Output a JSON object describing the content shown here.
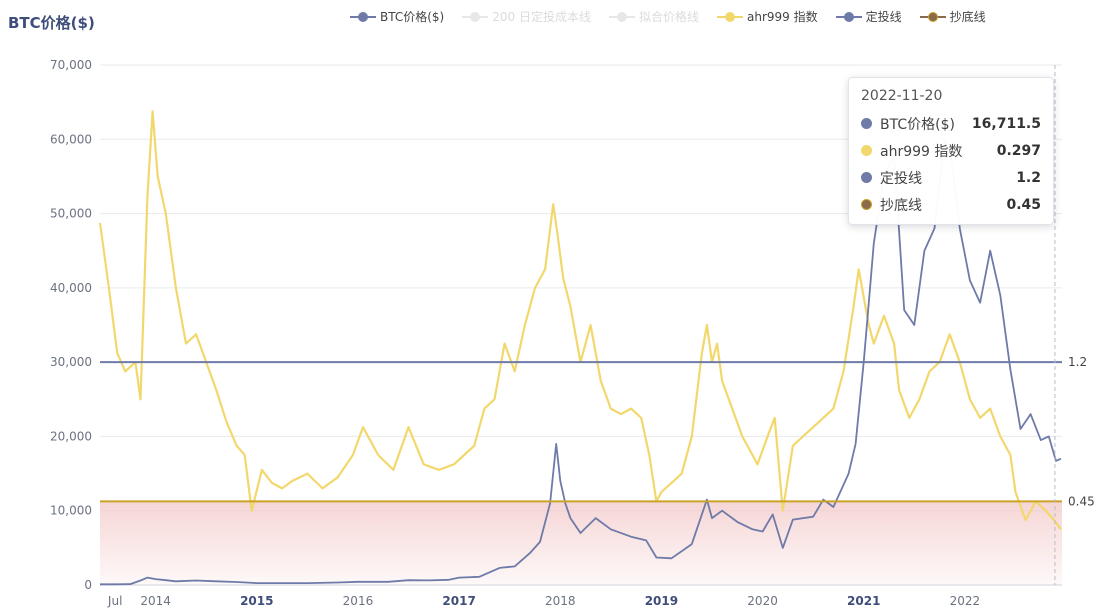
{
  "chart_data": {
    "type": "line",
    "y_axis_title": "BTC价格($)",
    "ylim": [
      0,
      70000
    ],
    "y_ticks": [
      "0",
      "10,000",
      "20,000",
      "30,000",
      "40,000",
      "50,000",
      "60,000",
      "70,000"
    ],
    "x_tick_labels": [
      {
        "label": "Jul",
        "bold": false
      },
      {
        "label": "2014",
        "bold": false
      },
      {
        "label": "2015",
        "bold": true
      },
      {
        "label": "2016",
        "bold": false
      },
      {
        "label": "2017",
        "bold": true
      },
      {
        "label": "2018",
        "bold": false
      },
      {
        "label": "2019",
        "bold": true
      },
      {
        "label": "2020",
        "bold": false
      },
      {
        "label": "2021",
        "bold": true
      },
      {
        "label": "2022",
        "bold": false
      }
    ],
    "grid": true,
    "legend_position": "top-center",
    "legend": [
      {
        "name": "BTC价格($)",
        "color": "#6e7aa8",
        "active": true
      },
      {
        "name": "200 日定投成本线",
        "color": "#c8c8c8",
        "active": false
      },
      {
        "name": "拟合价格线",
        "color": "#c8c8c8",
        "active": false
      },
      {
        "name": "ahr999 指数",
        "color": "#f2d86c",
        "active": true
      },
      {
        "name": "定投线",
        "color": "#6e7aa8",
        "active": true
      },
      {
        "name": "抄底线",
        "color": "#8a6a4a",
        "active": true
      }
    ],
    "colors": {
      "btc": "#6e7aa8",
      "ahr": "#f2d86c",
      "line_dingtou": "#6e7aa8",
      "line_chaodi": "#c9a227",
      "zone": "#f3c8c8"
    },
    "series": [
      {
        "name": "BTC价格($)",
        "axis": "left",
        "x": [
          2013.45,
          2013.6,
          2013.75,
          2013.85,
          2013.92,
          2014.0,
          2014.1,
          2014.2,
          2014.4,
          2014.6,
          2014.8,
          2015.0,
          2015.2,
          2015.5,
          2015.8,
          2016.0,
          2016.3,
          2016.5,
          2016.7,
          2016.9,
          2017.0,
          2017.2,
          2017.4,
          2017.55,
          2017.7,
          2017.8,
          2017.9,
          2017.96,
          2018.0,
          2018.05,
          2018.1,
          2018.2,
          2018.35,
          2018.5,
          2018.7,
          2018.85,
          2018.95,
          2019.1,
          2019.3,
          2019.45,
          2019.5,
          2019.6,
          2019.75,
          2019.9,
          2020.0,
          2020.1,
          2020.2,
          2020.3,
          2020.5,
          2020.6,
          2020.7,
          2020.85,
          2020.92,
          2021.0,
          2021.05,
          2021.1,
          2021.2,
          2021.3,
          2021.4,
          2021.5,
          2021.6,
          2021.7,
          2021.8,
          2021.87,
          2021.95,
          2022.05,
          2022.15,
          2022.25,
          2022.35,
          2022.45,
          2022.55,
          2022.65,
          2022.75,
          2022.83,
          2022.9,
          2022.95
        ],
        "y": [
          100,
          100,
          120,
          600,
          1000,
          800,
          650,
          500,
          600,
          500,
          400,
          250,
          250,
          250,
          330,
          430,
          430,
          650,
          620,
          700,
          1000,
          1100,
          2300,
          2500,
          4300,
          5800,
          11000,
          19000,
          14000,
          11000,
          9000,
          7000,
          9000,
          7500,
          6500,
          6000,
          3700,
          3600,
          5500,
          11500,
          9000,
          10000,
          8500,
          7500,
          7200,
          9500,
          5000,
          8800,
          9200,
          11500,
          10500,
          15000,
          19000,
          30000,
          38000,
          46000,
          55000,
          58000,
          37000,
          35000,
          45000,
          48000,
          60000,
          57000,
          48000,
          41000,
          38000,
          45000,
          39000,
          29000,
          21000,
          23000,
          19500,
          20000,
          16700,
          17000
        ]
      },
      {
        "name": "ahr999 指数",
        "axis": "right",
        "x": [
          2013.45,
          2013.5,
          2013.55,
          2013.62,
          2013.7,
          2013.8,
          2013.85,
          2013.92,
          2013.97,
          2014.02,
          2014.1,
          2014.2,
          2014.3,
          2014.4,
          2014.5,
          2014.6,
          2014.7,
          2014.8,
          2014.88,
          2014.95,
          2015.05,
          2015.15,
          2015.25,
          2015.35,
          2015.5,
          2015.65,
          2015.8,
          2015.95,
          2016.05,
          2016.2,
          2016.35,
          2016.5,
          2016.65,
          2016.8,
          2016.95,
          2017.05,
          2017.15,
          2017.25,
          2017.35,
          2017.45,
          2017.55,
          2017.65,
          2017.75,
          2017.85,
          2017.93,
          2017.97,
          2018.03,
          2018.1,
          2018.2,
          2018.3,
          2018.4,
          2018.5,
          2018.6,
          2018.7,
          2018.8,
          2018.88,
          2018.95,
          2019.0,
          2019.1,
          2019.2,
          2019.3,
          2019.4,
          2019.45,
          2019.5,
          2019.55,
          2019.6,
          2019.7,
          2019.8,
          2019.9,
          2019.95,
          2020.05,
          2020.12,
          2020.2,
          2020.3,
          2020.4,
          2020.5,
          2020.6,
          2020.7,
          2020.8,
          2020.9,
          2020.95,
          2021.0,
          2021.05,
          2021.1,
          2021.2,
          2021.3,
          2021.35,
          2021.45,
          2021.55,
          2021.65,
          2021.75,
          2021.85,
          2021.95,
          2022.05,
          2022.15,
          2022.25,
          2022.35,
          2022.45,
          2022.5,
          2022.6,
          2022.7,
          2022.8,
          2022.88,
          2022.95
        ],
        "y": [
          1.95,
          1.75,
          1.55,
          1.25,
          1.15,
          1.2,
          1.0,
          2.1,
          2.55,
          2.2,
          2.0,
          1.6,
          1.3,
          1.35,
          1.2,
          1.05,
          0.88,
          0.75,
          0.7,
          0.4,
          0.62,
          0.55,
          0.52,
          0.56,
          0.6,
          0.52,
          0.58,
          0.7,
          0.85,
          0.7,
          0.62,
          0.85,
          0.65,
          0.62,
          0.65,
          0.7,
          0.75,
          0.95,
          1.0,
          1.3,
          1.15,
          1.4,
          1.6,
          1.7,
          2.05,
          1.9,
          1.65,
          1.5,
          1.2,
          1.4,
          1.1,
          0.95,
          0.92,
          0.95,
          0.9,
          0.7,
          0.45,
          0.5,
          0.55,
          0.6,
          0.8,
          1.25,
          1.4,
          1.2,
          1.3,
          1.1,
          0.95,
          0.8,
          0.7,
          0.65,
          0.8,
          0.9,
          0.4,
          0.75,
          0.8,
          0.85,
          0.9,
          0.95,
          1.15,
          1.5,
          1.7,
          1.55,
          1.4,
          1.3,
          1.45,
          1.3,
          1.05,
          0.9,
          1.0,
          1.15,
          1.2,
          1.35,
          1.2,
          1.0,
          0.9,
          0.95,
          0.8,
          0.7,
          0.5,
          0.35,
          0.45,
          0.4,
          0.35,
          0.3
        ]
      }
    ],
    "reference_lines": [
      {
        "name": "定投线",
        "value": 1.2,
        "label": "1.2"
      },
      {
        "name": "抄底线",
        "value": 0.45,
        "label": "0.45"
      }
    ],
    "tooltip": {
      "date": "2022-11-20",
      "rows": [
        {
          "name": "BTC价格($)",
          "value": "16,711.5",
          "color": "#6e7aa8"
        },
        {
          "name": "ahr999 指数",
          "value": "0.297",
          "color": "#f2d86c"
        },
        {
          "name": "定投线",
          "value": "1.2",
          "color": "#6e7aa8"
        },
        {
          "name": "抄底线",
          "value": "0.45",
          "color": "#8a6a4a"
        }
      ]
    }
  }
}
